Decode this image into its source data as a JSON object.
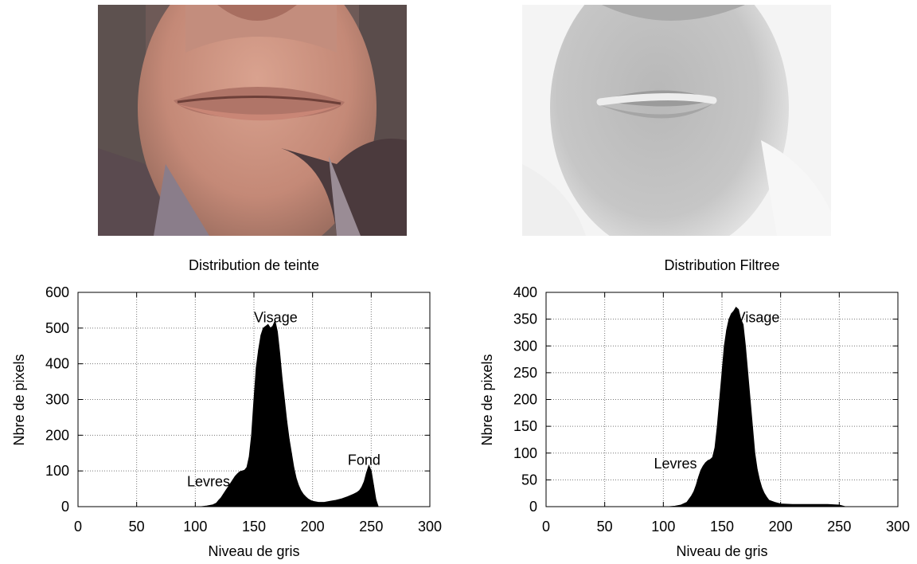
{
  "images": [
    {
      "id": "color",
      "description_icon": "face-photo-color"
    },
    {
      "id": "gray",
      "description_icon": "face-photo-filtered-gray"
    }
  ],
  "chart_data": [
    {
      "type": "area",
      "title": "Distribution de teinte",
      "xlabel": "Niveau de gris",
      "ylabel": "Nbre de pixels",
      "xlim": [
        0,
        300
      ],
      "ylim": [
        0,
        600
      ],
      "xticks": [
        0,
        50,
        100,
        150,
        200,
        250,
        300
      ],
      "yticks": [
        0,
        100,
        200,
        300,
        400,
        500,
        600
      ],
      "grid": true,
      "annotations": [
        {
          "text": "Visage",
          "x": 150,
          "y": 530
        },
        {
          "text": "Levres",
          "x": 93,
          "y": 70
        },
        {
          "text": "Fond",
          "x": 230,
          "y": 130
        }
      ],
      "x": [
        105,
        110,
        115,
        118,
        120,
        122,
        124,
        126,
        128,
        130,
        132,
        134,
        136,
        138,
        140,
        142,
        144,
        146,
        148,
        150,
        152,
        154,
        156,
        158,
        160,
        162,
        164,
        166,
        168,
        170,
        172,
        174,
        176,
        178,
        180,
        182,
        184,
        186,
        188,
        190,
        192,
        194,
        196,
        198,
        200,
        205,
        210,
        215,
        220,
        225,
        230,
        235,
        238,
        240,
        242,
        244,
        246,
        248,
        250,
        252,
        254,
        256
      ],
      "values": [
        0,
        2,
        5,
        10,
        18,
        25,
        35,
        45,
        55,
        65,
        75,
        85,
        92,
        98,
        100,
        102,
        110,
        140,
        200,
        300,
        390,
        440,
        480,
        500,
        505,
        510,
        500,
        505,
        520,
        490,
        430,
        360,
        300,
        240,
        190,
        150,
        110,
        80,
        60,
        45,
        35,
        28,
        22,
        18,
        15,
        12,
        12,
        15,
        18,
        22,
        28,
        35,
        40,
        45,
        55,
        70,
        95,
        115,
        100,
        60,
        20,
        0
      ]
    },
    {
      "type": "area",
      "title": "Distribution Filtree",
      "xlabel": "Niveau de gris",
      "ylabel": "Nbre de pixels",
      "xlim": [
        0,
        300
      ],
      "ylim": [
        0,
        400
      ],
      "xticks": [
        0,
        50,
        100,
        150,
        200,
        250,
        300
      ],
      "yticks": [
        0,
        50,
        100,
        150,
        200,
        250,
        300,
        350,
        400
      ],
      "grid": true,
      "annotations": [
        {
          "text": "Visage",
          "x": 162,
          "y": 353
        },
        {
          "text": "Levres",
          "x": 92,
          "y": 80
        }
      ],
      "x": [
        105,
        110,
        115,
        120,
        122,
        124,
        126,
        128,
        130,
        132,
        134,
        136,
        138,
        140,
        142,
        144,
        146,
        148,
        150,
        152,
        154,
        156,
        158,
        160,
        162,
        164,
        166,
        168,
        170,
        172,
        174,
        176,
        178,
        180,
        182,
        184,
        186,
        188,
        190,
        195,
        200,
        210,
        220,
        230,
        240,
        250,
        255
      ],
      "values": [
        0,
        1,
        3,
        8,
        14,
        20,
        28,
        40,
        55,
        68,
        76,
        82,
        86,
        88,
        92,
        110,
        150,
        200,
        250,
        300,
        330,
        350,
        360,
        365,
        372,
        368,
        350,
        340,
        300,
        250,
        200,
        150,
        100,
        70,
        50,
        35,
        25,
        18,
        12,
        8,
        5,
        4,
        4,
        4,
        4,
        3,
        0
      ]
    }
  ]
}
